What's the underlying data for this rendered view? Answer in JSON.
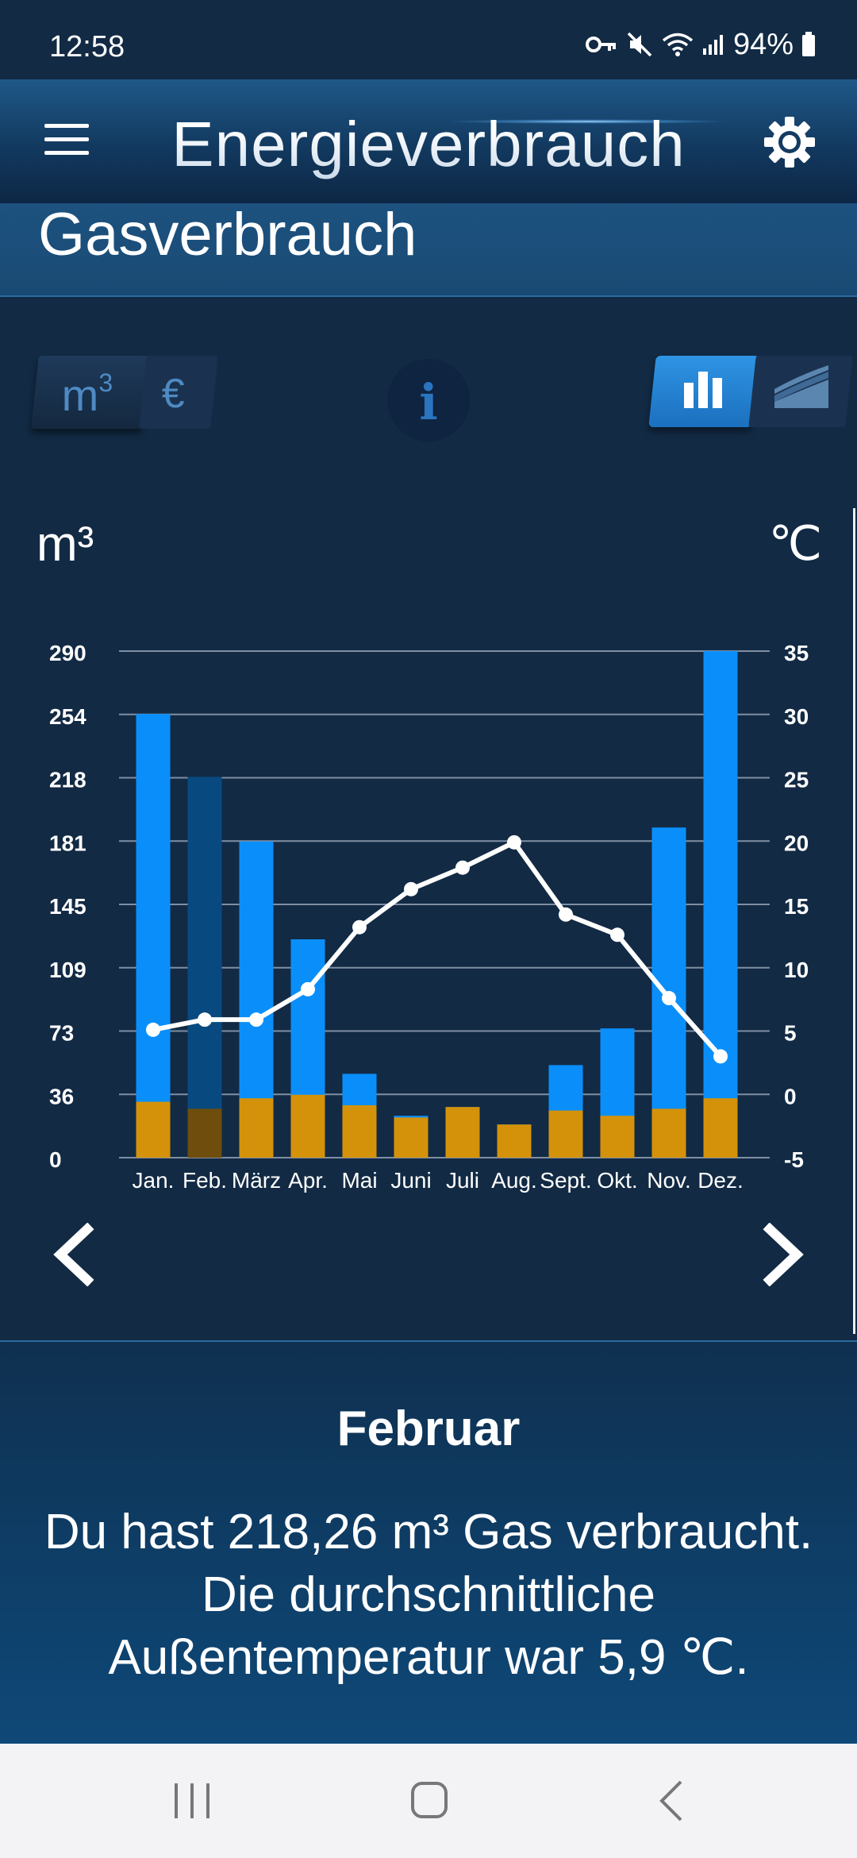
{
  "status_bar": {
    "time": "12:58",
    "battery": "94%",
    "icons": [
      "vpn-key-icon",
      "mute-icon",
      "wifi-icon",
      "signal-icon",
      "battery-icon"
    ]
  },
  "header": {
    "title": "Energieverbrauch",
    "menu_icon": "hamburger-menu-icon",
    "settings_icon": "gear-icon"
  },
  "section": {
    "title": "Gasverbrauch"
  },
  "controls": {
    "unit_m3": "m",
    "unit_m3_sup": "3",
    "unit_eur": "€",
    "info": "i",
    "selected_unit": "m3",
    "selected_view": "bar"
  },
  "chart_labels": {
    "left_unit": "m³",
    "right_unit": "℃"
  },
  "chart_data": {
    "type": "bar",
    "categories": [
      "Jan.",
      "Feb.",
      "März",
      "Apr.",
      "Mai",
      "Juni",
      "Juli",
      "Aug.",
      "Sept.",
      "Okt.",
      "Nov.",
      "Dez."
    ],
    "y_ticks": [
      "290",
      "254",
      "218",
      "181",
      "145",
      "109",
      "73",
      "36",
      "0"
    ],
    "y_right_ticks": [
      "35",
      "30",
      "25",
      "20",
      "15",
      "10",
      "5",
      "0",
      "-5"
    ],
    "ylim": [
      0,
      290
    ],
    "y2lim": [
      -5,
      35
    ],
    "grid": true,
    "selected_category": "Feb.",
    "series": [
      {
        "values": [
          254,
          218,
          181,
          125,
          48,
          24,
          29,
          19,
          53,
          74,
          189,
          290
        ],
        "color": "#0a8ffa",
        "selected_color": "#084a80"
      },
      {
        "values": [
          32,
          28,
          34,
          36,
          30,
          23,
          29,
          19,
          27,
          24,
          28,
          34
        ],
        "color": "#d4920a",
        "selected_color": "#6e4d0d"
      },
      {
        "values": [
          5.1,
          5.9,
          5.9,
          8.3,
          13.2,
          16.2,
          17.9,
          19.9,
          14.2,
          12.6,
          7.6,
          3.0
        ],
        "axis": "right",
        "type": "line",
        "color": "#ffffff"
      }
    ]
  },
  "navigation": {
    "prev_icon": "chevron-left-icon",
    "next_icon": "chevron-right-icon"
  },
  "detail": {
    "month": "Februar",
    "line1": "Du hast 218,26 m³ Gas verbraucht.",
    "line2": "Die durchschnittliche",
    "line3": "Außentemperatur war 5,9 ℃."
  },
  "android_nav": {
    "recents_icon": "recent-apps-icon",
    "home_icon": "home-icon",
    "back_icon": "back-icon"
  }
}
